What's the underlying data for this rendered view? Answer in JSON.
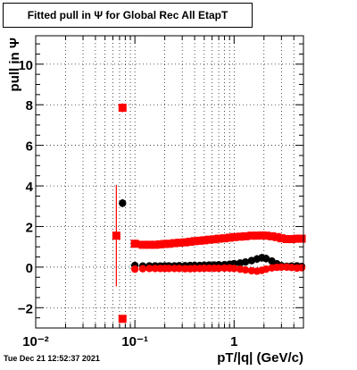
{
  "title": "Fitted pull in  Ψ  for Global Rec All EtapT",
  "timestamp": "Tue Dec 21 12:52:37 2021",
  "chart_data": {
    "type": "scatter",
    "title": "Fitted pull in  Ψ  for Global Rec All EtapT",
    "xlabel": "pT/|q| (GeV/c)",
    "ylabel": "pull in  Ψ",
    "xscale": "log",
    "xlim": [
      0.01,
      5.0
    ],
    "ylim": [
      -3,
      11.4
    ],
    "grid": true,
    "x_ticks": [
      {
        "value": 0.01,
        "label": "10⁻²"
      },
      {
        "value": 0.1,
        "label": "10⁻¹"
      },
      {
        "value": 1,
        "label": "1"
      }
    ],
    "y_ticks": [
      {
        "value": -2,
        "label": "−2"
      },
      {
        "value": 0,
        "label": "0"
      },
      {
        "value": 2,
        "label": "2"
      },
      {
        "value": 4,
        "label": "4"
      },
      {
        "value": 6,
        "label": "6"
      },
      {
        "value": 8,
        "label": "8"
      },
      {
        "value": 10,
        "label": "10"
      }
    ],
    "series": [
      {
        "color": "#000000",
        "marker": "circle",
        "x": [
          0.075,
          0.1,
          0.12,
          0.14,
          0.16,
          0.18,
          0.2,
          0.22,
          0.25,
          0.28,
          0.32,
          0.36,
          0.4,
          0.45,
          0.5,
          0.56,
          0.63,
          0.7,
          0.8,
          0.9,
          1.0,
          1.15,
          1.3,
          1.5,
          1.7,
          1.9,
          2.1,
          2.4,
          2.7,
          3.0,
          3.4,
          3.8,
          4.3,
          4.8
        ],
        "y": [
          3.15,
          0.08,
          0.05,
          0.06,
          0.06,
          0.05,
          0.06,
          0.06,
          0.06,
          0.07,
          0.07,
          0.08,
          0.08,
          0.08,
          0.09,
          0.1,
          0.1,
          0.11,
          0.12,
          0.14,
          0.17,
          0.2,
          0.25,
          0.32,
          0.4,
          0.46,
          0.42,
          0.3,
          0.16,
          0.07,
          0.04,
          0.05,
          0.06,
          0.03
        ],
        "err": [
          0.2,
          0.12,
          0.05,
          0.05,
          0.05,
          0.05,
          0.05,
          0.05,
          0.05,
          0.05,
          0.05,
          0.05,
          0.06,
          0.06,
          0.06,
          0.07,
          0.07,
          0.08,
          0.09,
          0.1,
          0.12,
          0.14,
          0.16,
          0.18,
          0.2,
          0.2,
          0.2,
          0.18,
          0.14,
          0.1,
          0.08,
          0.08,
          0.08,
          0.08
        ]
      },
      {
        "color": "#ff0000",
        "marker": "square",
        "x": [
          0.065,
          0.075,
          0.075,
          0.1,
          0.12,
          0.14,
          0.16,
          0.18,
          0.2,
          0.22,
          0.25,
          0.28,
          0.32,
          0.36,
          0.4,
          0.45,
          0.5,
          0.56,
          0.63,
          0.7,
          0.8,
          0.9,
          1.0,
          1.15,
          1.3,
          1.5,
          1.7,
          1.9,
          2.1,
          2.4,
          2.7,
          3.0,
          3.4,
          3.8,
          4.3,
          4.8
        ],
        "y": [
          1.55,
          7.85,
          -2.55,
          1.15,
          1.1,
          1.1,
          1.1,
          1.12,
          1.14,
          1.15,
          1.18,
          1.2,
          1.22,
          1.25,
          1.28,
          1.3,
          1.32,
          1.35,
          1.37,
          1.4,
          1.42,
          1.45,
          1.48,
          1.5,
          1.52,
          1.55,
          1.55,
          1.56,
          1.55,
          1.52,
          1.48,
          1.42,
          1.38,
          1.38,
          1.4,
          1.4
        ],
        "err": [
          2.5,
          0.22,
          0.1,
          0.1,
          0.05,
          0.05,
          0.05,
          0.05,
          0.05,
          0.05,
          0.05,
          0.06,
          0.06,
          0.06,
          0.07,
          0.07,
          0.08,
          0.08,
          0.08,
          0.09,
          0.1,
          0.1,
          0.12,
          0.12,
          0.14,
          0.15,
          0.16,
          0.16,
          0.16,
          0.15,
          0.13,
          0.11,
          0.1,
          0.09,
          0.08,
          0.08
        ]
      },
      {
        "color": "#ff0000",
        "marker": "circle",
        "x": [
          0.1,
          0.12,
          0.14,
          0.16,
          0.18,
          0.2,
          0.22,
          0.25,
          0.28,
          0.32,
          0.36,
          0.4,
          0.45,
          0.5,
          0.56,
          0.63,
          0.7,
          0.8,
          0.9,
          1.0,
          1.15,
          1.3,
          1.5,
          1.7,
          1.9,
          2.1,
          2.4,
          2.7,
          3.0,
          3.4,
          3.8,
          4.3,
          4.8
        ],
        "y": [
          -0.1,
          -0.08,
          -0.07,
          -0.07,
          -0.07,
          -0.07,
          -0.07,
          -0.07,
          -0.07,
          -0.08,
          -0.08,
          -0.07,
          -0.07,
          -0.06,
          -0.06,
          -0.06,
          -0.06,
          -0.05,
          -0.05,
          -0.07,
          -0.1,
          -0.14,
          -0.18,
          -0.2,
          -0.16,
          -0.1,
          -0.04,
          -0.01,
          0.0,
          0.0,
          -0.02,
          -0.05,
          -0.03
        ],
        "err": [
          0.12,
          0.05,
          0.05,
          0.05,
          0.05,
          0.05,
          0.05,
          0.05,
          0.05,
          0.05,
          0.05,
          0.05,
          0.05,
          0.05,
          0.05,
          0.05,
          0.06,
          0.06,
          0.06,
          0.07,
          0.08,
          0.09,
          0.1,
          0.1,
          0.1,
          0.1,
          0.09,
          0.08,
          0.08,
          0.07,
          0.07,
          0.07,
          0.07
        ]
      }
    ]
  }
}
